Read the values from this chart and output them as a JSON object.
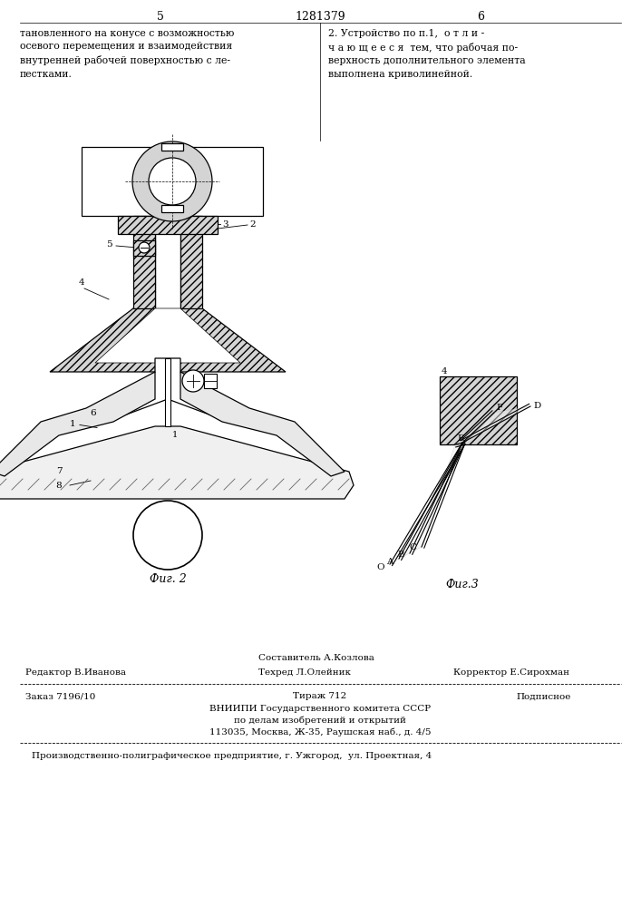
{
  "page_width": 7.07,
  "page_height": 10.0,
  "bg_color": "#ffffff",
  "top_page_num_left": "5",
  "top_patent_num": "1281379",
  "top_page_num_right": "6",
  "col1_text": "тановленного на конусе с возможностью\nосевого перемещения и взаимодействия\nвнутренней рабочей поверхностью с ле-\nпестками.",
  "col2_text": "2. Устройство по п.1,  о т л и -\nч а ю щ е е с я  тем, что рабочая по-\nверхность дополнительного элемента\nвыполнена криволинейной.",
  "fig2_label": "Фиг. 2",
  "fig3_label": "Фиг.3",
  "editor_label": "Редактор В.Иванова",
  "composer_label": "Составитель А.Козлова",
  "techred_label": "Техред Л.Олейник",
  "corrector_label": "Корректор Е.Сирохман",
  "order_label": "Заказ 7196/10",
  "tirage_label": "Тираж 712",
  "podpisnoe_label": "Подписное",
  "vniip1": "ВНИИПИ Государственного комитета СССР",
  "vniip2": "по делам изобретений и открытий",
  "vniip3": "113035, Москва, Ж-35, Раушская наб., д. 4/5",
  "footer_label": "Производственно-полиграфическое предприятие, г. Ужгород,  ул. Проектная, 4",
  "text_color": "#000000",
  "line_color": "#000000"
}
